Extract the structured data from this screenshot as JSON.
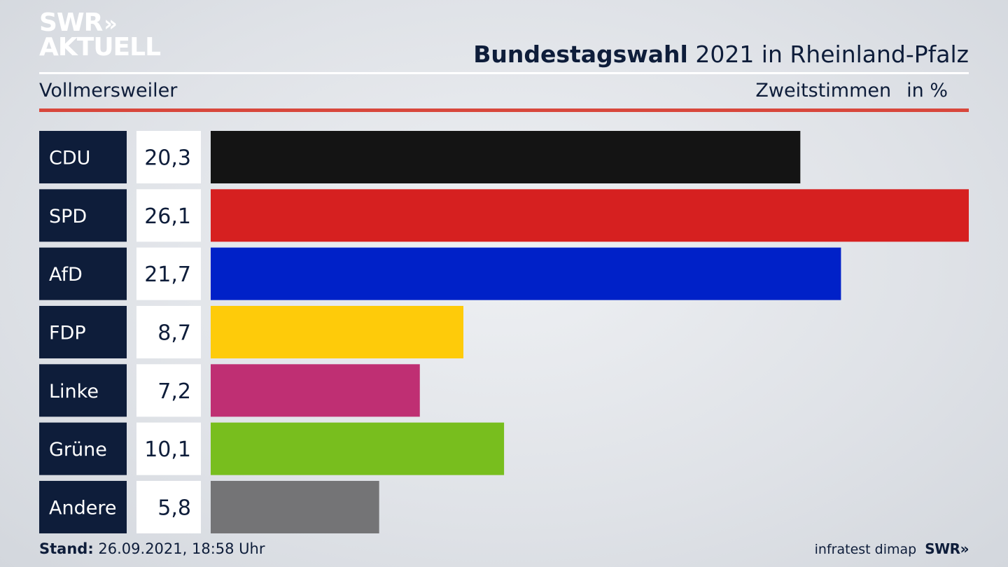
{
  "brand": {
    "line1": "SWR",
    "chevrons": "»",
    "line2": "AKTUELL"
  },
  "header": {
    "title_bold": "Bundestagswahl",
    "title_rest": " 2021 in Rheinland-Pfalz",
    "location": "Vollmersweiler",
    "measure": "Zweitstimmen",
    "unit": "in %"
  },
  "chart_data": {
    "type": "bar",
    "orientation": "horizontal",
    "categories": [
      "CDU",
      "SPD",
      "AfD",
      "FDP",
      "Linke",
      "Grüne",
      "Andere"
    ],
    "values": [
      20.3,
      26.1,
      21.7,
      8.7,
      7.2,
      10.1,
      5.8
    ],
    "value_labels": [
      "20,3",
      "26,1",
      "21,7",
      "8,7",
      "7,2",
      "10,1",
      "5,8"
    ],
    "colors": [
      "#141414",
      "#d62020",
      "#0021c8",
      "#fecb0a",
      "#bf2f73",
      "#78be1e",
      "#747476"
    ],
    "label_box_color": "#0e1d3a",
    "xlim": [
      0,
      26.1
    ],
    "grid": false,
    "legend": "none"
  },
  "footer": {
    "stand_label": "Stand:",
    "stand_value": " 26.09.2021, 18:58 Uhr",
    "source": "infratest dimap",
    "source_logo": "SWR»"
  }
}
